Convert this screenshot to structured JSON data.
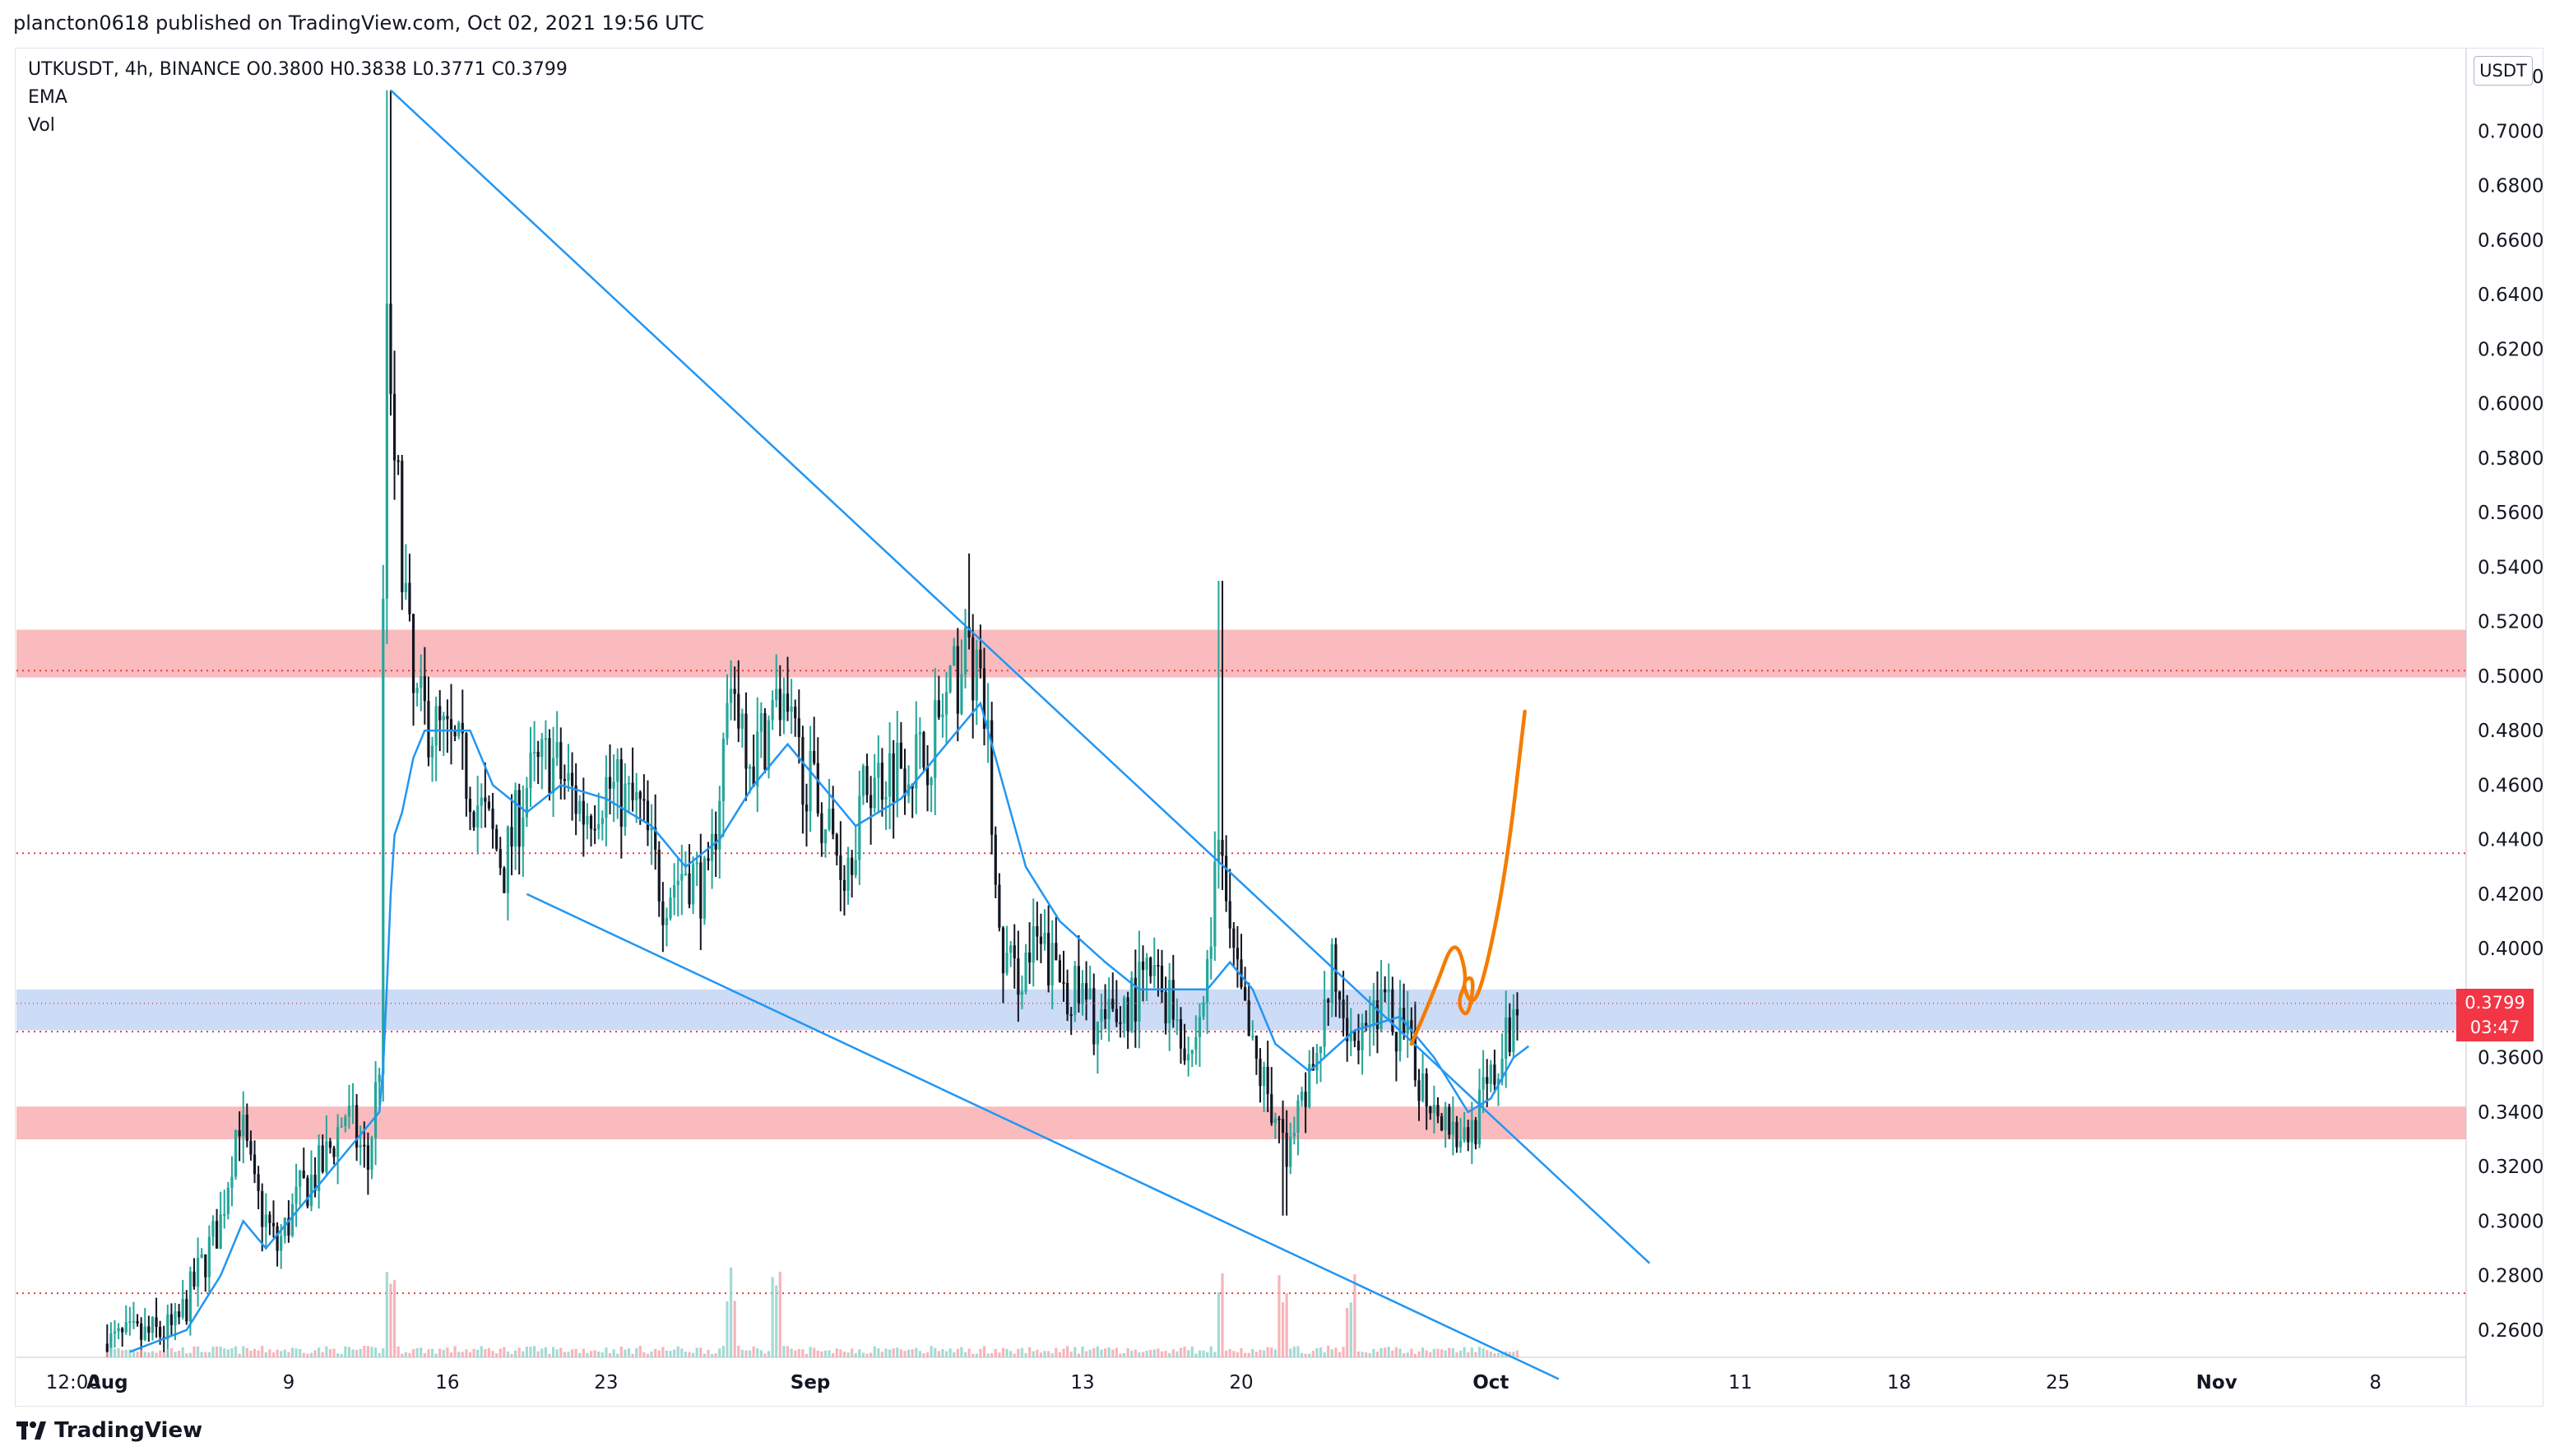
{
  "header": {
    "published": "plancton0618 published on TradingView.com, Oct 02, 2021 19:56 UTC"
  },
  "legend": {
    "symbol_line": "UTKUSDT, 4h, BINANCE  O0.3800  H0.3838  L0.3771  C0.3799",
    "ema_label": "EMA",
    "vol_label": "Vol"
  },
  "price_axis": {
    "unit": "USDT",
    "last_price": "0.3799",
    "countdown": "03:47"
  },
  "footer": {
    "brand": "TradingView"
  },
  "colors": {
    "up": "#26a69a",
    "down": "#131722",
    "ema": "#2196f3",
    "trendline": "#2196f3",
    "resistance_zone": "#f8b4b6",
    "support_zone": "#c7d7f5",
    "dotted_level": "#e04040",
    "projection": "#f57c00",
    "last_price": "#f23645"
  },
  "chart_data": {
    "type": "candlestick",
    "ylim": [
      0.25,
      0.73
    ],
    "y_ticks": [
      "0.7200",
      "0.7000",
      "0.6800",
      "0.6600",
      "0.6400",
      "0.6200",
      "0.6000",
      "0.5800",
      "0.5600",
      "0.5400",
      "0.5200",
      "0.5000",
      "0.4800",
      "0.4600",
      "0.4400",
      "0.4200",
      "0.4000",
      "0.3600",
      "0.3400",
      "0.3200",
      "0.3000",
      "0.2800",
      "0.2600"
    ],
    "x_ticks": [
      "12:00",
      "Aug",
      "9",
      "16",
      "23",
      "Sep",
      "13",
      "20",
      "Oct",
      "11",
      "18",
      "25",
      "Nov",
      "8"
    ],
    "x_tick_days": [
      -1.5,
      0,
      8,
      15,
      22,
      31,
      43,
      50,
      61,
      72,
      79,
      86,
      93,
      100
    ],
    "x_range_days": [
      -4,
      104
    ],
    "candle_interval_hours": 4,
    "series_anchors": [
      [
        0.0,
        0.255
      ],
      [
        3.0,
        0.26
      ],
      [
        5.0,
        0.3
      ],
      [
        5.8,
        0.34
      ],
      [
        6.5,
        0.31
      ],
      [
        7.5,
        0.29
      ],
      [
        8.5,
        0.31
      ],
      [
        9.5,
        0.32
      ],
      [
        10.5,
        0.34
      ],
      [
        11.5,
        0.32
      ],
      [
        12.0,
        0.36
      ],
      [
        12.3,
        0.64
      ],
      [
        12.8,
        0.57
      ],
      [
        13.5,
        0.49
      ],
      [
        14.5,
        0.48
      ],
      [
        15.5,
        0.47
      ],
      [
        16.5,
        0.45
      ],
      [
        17.5,
        0.43
      ],
      [
        18.5,
        0.46
      ],
      [
        19.5,
        0.47
      ],
      [
        21.0,
        0.45
      ],
      [
        22.0,
        0.46
      ],
      [
        23.5,
        0.45
      ],
      [
        24.5,
        0.42
      ],
      [
        25.5,
        0.43
      ],
      [
        26.5,
        0.42
      ],
      [
        27.5,
        0.5
      ],
      [
        28.5,
        0.47
      ],
      [
        29.5,
        0.49
      ],
      [
        30.5,
        0.47
      ],
      [
        31.5,
        0.45
      ],
      [
        32.5,
        0.43
      ],
      [
        33.5,
        0.46
      ],
      [
        35.0,
        0.47
      ],
      [
        36.0,
        0.47
      ],
      [
        37.0,
        0.49
      ],
      [
        38.0,
        0.51
      ],
      [
        38.8,
        0.48
      ],
      [
        39.3,
        0.4
      ],
      [
        40.0,
        0.39
      ],
      [
        41.0,
        0.4
      ],
      [
        42.0,
        0.39
      ],
      [
        43.0,
        0.38
      ],
      [
        44.0,
        0.37
      ],
      [
        45.0,
        0.38
      ],
      [
        46.0,
        0.39
      ],
      [
        47.0,
        0.38
      ],
      [
        47.8,
        0.36
      ],
      [
        48.5,
        0.39
      ],
      [
        49.0,
        0.44
      ],
      [
        49.5,
        0.4
      ],
      [
        50.5,
        0.36
      ],
      [
        51.5,
        0.34
      ],
      [
        52.0,
        0.32
      ],
      [
        53.0,
        0.35
      ],
      [
        54.0,
        0.39
      ],
      [
        55.0,
        0.37
      ],
      [
        56.0,
        0.38
      ],
      [
        57.0,
        0.37
      ],
      [
        58.0,
        0.35
      ],
      [
        59.0,
        0.34
      ],
      [
        59.8,
        0.33
      ],
      [
        60.5,
        0.34
      ],
      [
        61.5,
        0.36
      ],
      [
        62.2,
        0.3799
      ]
    ],
    "ema_anchors": [
      [
        1.0,
        0.252
      ],
      [
        3.5,
        0.26
      ],
      [
        5.0,
        0.28
      ],
      [
        6.0,
        0.3
      ],
      [
        7.0,
        0.29
      ],
      [
        8.0,
        0.3
      ],
      [
        9.0,
        0.31
      ],
      [
        10.0,
        0.32
      ],
      [
        11.0,
        0.33
      ],
      [
        12.0,
        0.34
      ],
      [
        12.2,
        0.36
      ],
      [
        12.6,
        0.44
      ],
      [
        13.0,
        0.45
      ],
      [
        13.5,
        0.47
      ],
      [
        14.0,
        0.48
      ],
      [
        16.0,
        0.48
      ],
      [
        17.0,
        0.46
      ],
      [
        18.5,
        0.45
      ],
      [
        20.0,
        0.46
      ],
      [
        22.0,
        0.455
      ],
      [
        24.0,
        0.445
      ],
      [
        25.5,
        0.43
      ],
      [
        27.0,
        0.44
      ],
      [
        28.5,
        0.46
      ],
      [
        30.0,
        0.475
      ],
      [
        31.5,
        0.46
      ],
      [
        33.0,
        0.445
      ],
      [
        35.0,
        0.455
      ],
      [
        37.0,
        0.475
      ],
      [
        38.5,
        0.49
      ],
      [
        39.5,
        0.46
      ],
      [
        40.5,
        0.43
      ],
      [
        42.0,
        0.41
      ],
      [
        44.0,
        0.395
      ],
      [
        45.5,
        0.385
      ],
      [
        47.0,
        0.385
      ],
      [
        48.5,
        0.385
      ],
      [
        49.5,
        0.395
      ],
      [
        50.5,
        0.385
      ],
      [
        51.5,
        0.365
      ],
      [
        53.0,
        0.355
      ],
      [
        55.0,
        0.37
      ],
      [
        57.0,
        0.375
      ],
      [
        58.5,
        0.36
      ],
      [
        60.0,
        0.34
      ],
      [
        61.0,
        0.345
      ],
      [
        62.0,
        0.36
      ],
      [
        62.8,
        0.365
      ]
    ],
    "volume_spike_days": [
      12.4,
      12.6,
      27.5,
      29.5,
      49.1,
      51.8,
      54.8
    ],
    "zones": [
      {
        "kind": "resistance",
        "from": 0.4995,
        "to": 0.517
      },
      {
        "kind": "support",
        "from": 0.37,
        "to": 0.385
      },
      {
        "kind": "resistance",
        "from": 0.33,
        "to": 0.342
      }
    ],
    "dotted_levels": [
      0.502,
      0.435,
      0.3695,
      0.2735
    ],
    "trendlines": [
      {
        "from": [
          12.5,
          0.715
        ],
        "to": [
          68.0,
          0.2845
        ]
      },
      {
        "from": [
          18.5,
          0.42
        ],
        "to": [
          64.0,
          0.242
        ]
      }
    ],
    "projection_path": [
      [
        57.5,
        0.365
      ],
      [
        58.5,
        0.384
      ],
      [
        59.4,
        0.405
      ],
      [
        60.0,
        0.389
      ],
      [
        59.5,
        0.38
      ],
      [
        60.0,
        0.374
      ],
      [
        60.3,
        0.39
      ],
      [
        59.7,
        0.388
      ],
      [
        60.2,
        0.378
      ],
      [
        60.8,
        0.392
      ],
      [
        61.7,
        0.43
      ],
      [
        62.5,
        0.487
      ]
    ]
  }
}
